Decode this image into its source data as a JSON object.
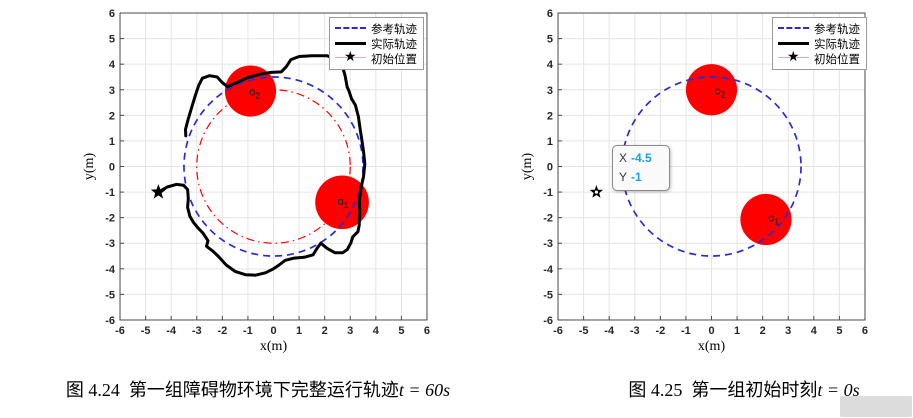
{
  "captions": {
    "left": {
      "prefix": "图 4.24",
      "text": "第一组障碍物环境下完整运行轨迹",
      "math": "t = 60s"
    },
    "right": {
      "prefix": "图 4.25",
      "text": "第一组初始时刻",
      "math": "t = 0s"
    }
  },
  "legend": {
    "items": [
      {
        "key": "reference",
        "label": "参考轨迹",
        "style": "dashed-blue"
      },
      {
        "key": "actual",
        "label": "实际轨迹",
        "style": "solid-black"
      },
      {
        "key": "initial",
        "label": "初始位置",
        "style": "star-pink"
      }
    ]
  },
  "datatip": {
    "x_label": "X",
    "x_value": "-4.5",
    "y_label": "Y",
    "y_value": "-1"
  },
  "colors": {
    "reference": "#2a2ad8",
    "inner": "#ff0000",
    "actual": "#000000",
    "obstacle": "#ff0000",
    "initial_line": "#d5a9d0",
    "marker": "#000000",
    "grid": "#e4e4e4",
    "axis_box": "#4a4a4a",
    "tick_text": "#262626",
    "tooltip_value": "#17a2e6"
  },
  "chart_data": [
    {
      "type": "line",
      "title": "图 4.24 第一组障碍物环境下完整运行轨迹 t = 60s",
      "xlabel": "x(m)",
      "ylabel": "y(m)",
      "xlim": [
        -6,
        6
      ],
      "ylim": [
        -6,
        6
      ],
      "xticks": [
        -6,
        -5,
        -4,
        -3,
        -2,
        -1,
        0,
        1,
        2,
        3,
        4,
        5,
        6
      ],
      "yticks": [
        -6,
        -5,
        -4,
        -3,
        -2,
        -1,
        0,
        1,
        2,
        3,
        4,
        5,
        6
      ],
      "grid": true,
      "legend_position": "top-right",
      "series": [
        {
          "name": "参考轨迹",
          "kind": "circle",
          "center": [
            0,
            0
          ],
          "radius": 3.5,
          "color_key": "reference",
          "dash": "7 5",
          "width": 1.7
        },
        {
          "name": "内圈红色虚点参考圆",
          "kind": "circle",
          "center": [
            0,
            0
          ],
          "radius": 3.0,
          "color_key": "inner",
          "dash": "8 4 1.5 4",
          "width": 1.2
        },
        {
          "name": "实际轨迹",
          "kind": "path",
          "color_key": "actual",
          "width": 3,
          "points": [
            [
              -4.5,
              -1.0
            ],
            [
              -4.15,
              -0.8
            ],
            [
              -3.8,
              -0.7
            ],
            [
              -3.52,
              -0.73
            ],
            [
              -3.36,
              -0.9
            ],
            [
              -3.33,
              -1.25
            ],
            [
              -3.36,
              -1.6
            ],
            [
              -3.27,
              -1.95
            ],
            [
              -3.13,
              -2.18
            ],
            [
              -2.95,
              -2.4
            ],
            [
              -2.76,
              -2.6
            ],
            [
              -2.56,
              -2.9
            ],
            [
              -2.62,
              -3.12
            ],
            [
              -2.38,
              -3.3
            ],
            [
              -2.15,
              -3.52
            ],
            [
              -1.85,
              -3.85
            ],
            [
              -1.5,
              -4.1
            ],
            [
              -1.1,
              -4.23
            ],
            [
              -0.7,
              -4.25
            ],
            [
              -0.3,
              -4.15
            ],
            [
              0.0,
              -4.0
            ],
            [
              0.22,
              -3.85
            ],
            [
              0.45,
              -3.67
            ],
            [
              0.8,
              -3.58
            ],
            [
              1.2,
              -3.55
            ],
            [
              1.55,
              -3.45
            ],
            [
              1.7,
              -3.2
            ],
            [
              1.85,
              -3.0
            ],
            [
              2.1,
              -3.2
            ],
            [
              2.4,
              -3.37
            ],
            [
              2.7,
              -3.37
            ],
            [
              2.88,
              -3.25
            ],
            [
              3.02,
              -3.0
            ],
            [
              3.1,
              -2.75
            ],
            [
              3.3,
              -2.55
            ],
            [
              3.35,
              -2.3
            ],
            [
              3.37,
              -1.8
            ],
            [
              3.36,
              -1.3
            ],
            [
              3.42,
              -0.85
            ],
            [
              3.52,
              -0.4
            ],
            [
              3.57,
              0.1
            ],
            [
              3.52,
              0.6
            ],
            [
              3.45,
              1.05
            ],
            [
              3.38,
              1.5
            ],
            [
              3.32,
              1.95
            ],
            [
              3.2,
              2.4
            ],
            [
              3.05,
              2.65
            ],
            [
              2.95,
              2.95
            ],
            [
              2.88,
              3.1
            ],
            [
              2.8,
              3.55
            ],
            [
              2.68,
              3.95
            ],
            [
              2.5,
              4.15
            ],
            [
              2.1,
              4.33
            ],
            [
              1.5,
              4.33
            ],
            [
              1.0,
              4.3
            ],
            [
              0.68,
              4.18
            ],
            [
              0.5,
              3.9
            ],
            [
              0.3,
              3.7
            ],
            [
              -0.1,
              3.68
            ],
            [
              -0.55,
              3.6
            ],
            [
              -1.0,
              3.48
            ],
            [
              -1.45,
              3.28
            ],
            [
              -1.8,
              3.12
            ],
            [
              -2.0,
              3.28
            ],
            [
              -2.2,
              3.5
            ],
            [
              -2.5,
              3.55
            ],
            [
              -2.78,
              3.45
            ],
            [
              -2.92,
              3.18
            ],
            [
              -3.05,
              2.8
            ],
            [
              -3.2,
              2.3
            ],
            [
              -3.35,
              1.8
            ],
            [
              -3.44,
              1.45
            ],
            [
              -3.43,
              1.2
            ]
          ]
        },
        {
          "name": "初始位置",
          "kind": "marker",
          "marker": "star",
          "at": [
            -4.5,
            -1
          ],
          "size": 8,
          "dot": false
        }
      ],
      "obstacles": [
        {
          "label": "o",
          "sub": "2",
          "center": [
            -0.9,
            2.95
          ],
          "radius": 1.0,
          "label_at": [
            -0.95,
            2.78
          ]
        },
        {
          "label": "o",
          "sub": "1",
          "center": [
            2.68,
            -1.4
          ],
          "radius": 1.05,
          "label_at": [
            2.5,
            -1.5
          ]
        }
      ]
    },
    {
      "type": "line",
      "title": "图 4.25 第一组初始时刻 t = 0s",
      "xlabel": "x(m)",
      "ylabel": "y(m)",
      "xlim": [
        -6,
        6
      ],
      "ylim": [
        -6,
        6
      ],
      "xticks": [
        -6,
        -5,
        -4,
        -3,
        -2,
        -1,
        0,
        1,
        2,
        3,
        4,
        5,
        6
      ],
      "yticks": [
        -6,
        -5,
        -4,
        -3,
        -2,
        -1,
        0,
        1,
        2,
        3,
        4,
        5,
        6
      ],
      "grid": true,
      "legend_position": "top-right",
      "series": [
        {
          "name": "参考轨迹",
          "kind": "circle",
          "center": [
            0,
            0
          ],
          "radius": 3.5,
          "color_key": "reference",
          "dash": "7 5",
          "width": 1.7
        },
        {
          "name": "初始位置",
          "kind": "marker",
          "marker": "star",
          "at": [
            -4.5,
            -1
          ],
          "size": 7,
          "dot": true
        }
      ],
      "obstacles": [
        {
          "label": "o",
          "sub": "2",
          "center": [
            0.0,
            3.0
          ],
          "radius": 1.0,
          "label_at": [
            0.12,
            2.82
          ]
        },
        {
          "label": "o",
          "sub": "1",
          "center": [
            2.13,
            -2.07
          ],
          "radius": 1.0,
          "label_at": [
            2.22,
            -2.15
          ]
        }
      ]
    }
  ]
}
